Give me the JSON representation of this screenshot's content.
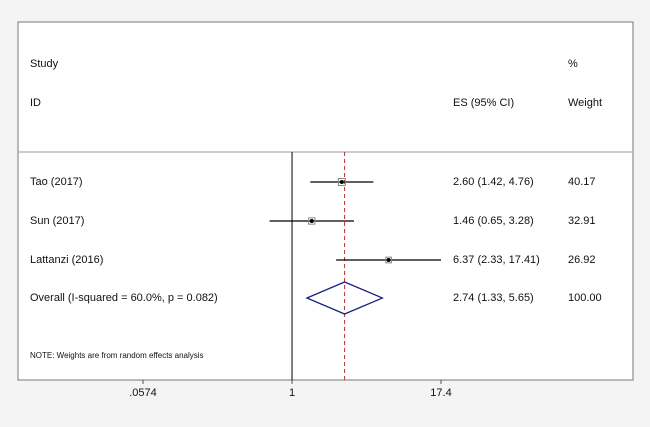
{
  "chart_data": {
    "type": "forest",
    "headers": {
      "study": "Study",
      "id": "ID",
      "es": "ES (95% CI)",
      "pct": "%",
      "weight": "Weight"
    },
    "studies": [
      {
        "label": "Tao (2017)",
        "es": 2.6,
        "lower": 1.42,
        "upper": 4.76,
        "es_label": "2.60 (1.42, 4.76)",
        "weight": 40.17
      },
      {
        "label": "Sun (2017)",
        "es": 1.46,
        "lower": 0.65,
        "upper": 3.28,
        "es_label": "1.46 (0.65, 3.28)",
        "weight": 32.91
      },
      {
        "label": "Lattanzi (2016)",
        "es": 6.37,
        "lower": 2.33,
        "upper": 17.41,
        "es_label": "6.37 (2.33, 17.41)",
        "weight": 26.92
      }
    ],
    "overall": {
      "label": "Overall  (I-squared = 60.0%, p = 0.082)",
      "es": 2.74,
      "lower": 1.33,
      "upper": 5.65,
      "es_label": "2.74 (1.33, 5.65)",
      "weight": {
        "value": 100,
        "label": "100.00"
      }
    },
    "note": "NOTE: Weights are from random effects analysis",
    "log_scale": true,
    "xlim": [
      0.0574,
      17.4
    ],
    "xticks": [
      {
        "value": 0.0574,
        "label": ".0574"
      },
      1,
      17.4
    ],
    "null_value": 1,
    "ci_color": "#000000",
    "diamond_color": "#1a237e",
    "overall_line_color": "#b03030"
  }
}
